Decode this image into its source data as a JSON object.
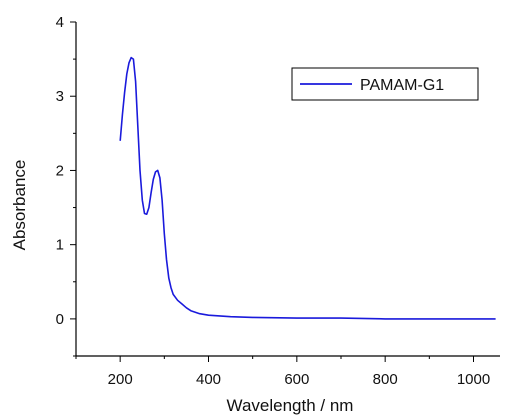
{
  "chart_data": {
    "type": "line",
    "title": "",
    "xlabel": "Wavelength / nm",
    "ylabel": "Absorbance",
    "xlim": [
      100,
      1060
    ],
    "ylim": [
      -0.5,
      4
    ],
    "x_ticks": [
      200,
      400,
      600,
      800,
      1000
    ],
    "y_ticks": [
      0,
      1,
      2,
      3,
      4
    ],
    "grid": false,
    "legend_position": "top-right",
    "series": [
      {
        "name": "PAMAM-G1",
        "color": "#1a1adc",
        "x": [
          200,
          205,
          210,
          215,
          220,
          225,
          230,
          235,
          240,
          245,
          250,
          255,
          260,
          265,
          270,
          275,
          280,
          285,
          290,
          295,
          300,
          305,
          310,
          315,
          320,
          330,
          340,
          350,
          360,
          380,
          400,
          450,
          500,
          600,
          700,
          800,
          900,
          1000,
          1050
        ],
        "y": [
          2.4,
          2.75,
          3.05,
          3.3,
          3.45,
          3.52,
          3.5,
          3.2,
          2.6,
          2.0,
          1.6,
          1.42,
          1.41,
          1.5,
          1.7,
          1.88,
          1.98,
          2.0,
          1.9,
          1.6,
          1.15,
          0.8,
          0.55,
          0.42,
          0.33,
          0.25,
          0.2,
          0.15,
          0.11,
          0.07,
          0.05,
          0.03,
          0.02,
          0.01,
          0.01,
          0.0,
          0.0,
          0.0,
          0.0
        ]
      }
    ]
  }
}
